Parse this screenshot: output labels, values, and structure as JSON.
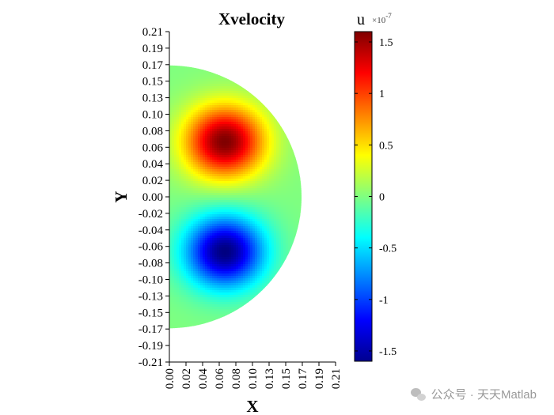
{
  "chart_data": {
    "type": "heatmap",
    "title": "Xvelocity",
    "xlabel": "X",
    "ylabel": "Y",
    "x_ticks": [
      "0.00",
      "0.02",
      "0.04",
      "0.06",
      "0.08",
      "0.10",
      "0.13",
      "0.15",
      "0.17",
      "0.19",
      "0.21"
    ],
    "y_ticks": [
      "0.21",
      "0.19",
      "0.17",
      "0.15",
      "0.13",
      "0.10",
      "0.08",
      "0.06",
      "0.04",
      "0.02",
      "0.00",
      "-0.02",
      "-0.04",
      "-0.06",
      "-0.08",
      "-0.10",
      "-0.13",
      "-0.15",
      "-0.17",
      "-0.19",
      "-0.21"
    ],
    "xlim": [
      0,
      0.21
    ],
    "ylim": [
      -0.21,
      0.21
    ],
    "domain": {
      "shape": "half-disk",
      "center": [
        0,
        0
      ],
      "radius": 0.167
    },
    "extrema": [
      {
        "x": 0.07,
        "y": 0.07,
        "value": 1.6
      },
      {
        "x": 0.07,
        "y": -0.07,
        "value": -1.6
      }
    ],
    "colorbar": {
      "label": "u",
      "multiplier": "×10",
      "exponent": "-7",
      "ticks": [
        "1.5",
        "1",
        "0.5",
        "0",
        "-0.5",
        "-1",
        "-1.5"
      ],
      "tick_values": [
        1.5,
        1,
        0.5,
        0,
        -0.5,
        -1,
        -1.5
      ],
      "clim": [
        -1.6,
        1.6
      ],
      "colormap": "jet"
    }
  },
  "watermark": {
    "text": "公众号 · 天天Matlab"
  }
}
